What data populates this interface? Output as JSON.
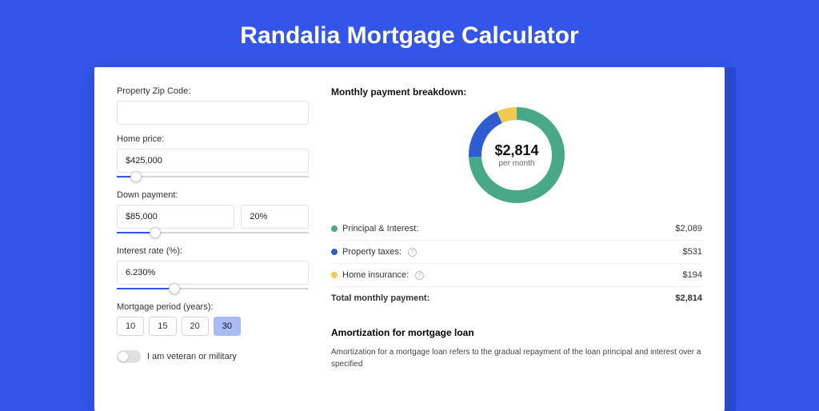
{
  "page": {
    "title": "Randalia Mortgage Calculator"
  },
  "colors": {
    "page_bg": "#3355e8",
    "card_bg": "#ffffff",
    "slider_fill": "#3355e8",
    "active_period_bg": "#a8bcf5"
  },
  "form": {
    "zip": {
      "label": "Property Zip Code:",
      "value": ""
    },
    "home_price": {
      "label": "Home price:",
      "value": "$425,000",
      "slider_pct": 10
    },
    "down_payment": {
      "label": "Down payment:",
      "amount": "$85,000",
      "percent": "20%",
      "slider_pct": 20
    },
    "interest_rate": {
      "label": "Interest rate (%):",
      "value": "6.230%",
      "slider_pct": 30
    },
    "mortgage_period": {
      "label": "Mortgage period (years):",
      "options": [
        "10",
        "15",
        "20",
        "30"
      ],
      "active_index": 3
    },
    "veteran": {
      "label": "I am veteran or military",
      "checked": false
    }
  },
  "breakdown": {
    "title": "Monthly payment breakdown:",
    "donut": {
      "type": "donut",
      "amount": "$2,814",
      "sub": "per month",
      "size": 120,
      "stroke_width": 16,
      "segments": [
        {
          "label": "principal_interest",
          "color": "#47a987",
          "fraction": 0.742
        },
        {
          "label": "property_taxes",
          "color": "#2e5dd1",
          "fraction": 0.189
        },
        {
          "label": "home_insurance",
          "color": "#f2c94c",
          "fraction": 0.069
        }
      ]
    },
    "rows": [
      {
        "key": "principal_interest",
        "label": "Principal & Interest:",
        "color": "#47a987",
        "amount": "$2,089",
        "help": false
      },
      {
        "key": "property_taxes",
        "label": "Property taxes:",
        "color": "#2e5dd1",
        "amount": "$531",
        "help": true
      },
      {
        "key": "home_insurance",
        "label": "Home insurance:",
        "color": "#f2c94c",
        "amount": "$194",
        "help": true
      }
    ],
    "total": {
      "label": "Total monthly payment:",
      "amount": "$2,814"
    }
  },
  "amortization": {
    "title": "Amortization for mortgage loan",
    "text": "Amortization for a mortgage loan refers to the gradual repayment of the loan principal and interest over a specified"
  }
}
